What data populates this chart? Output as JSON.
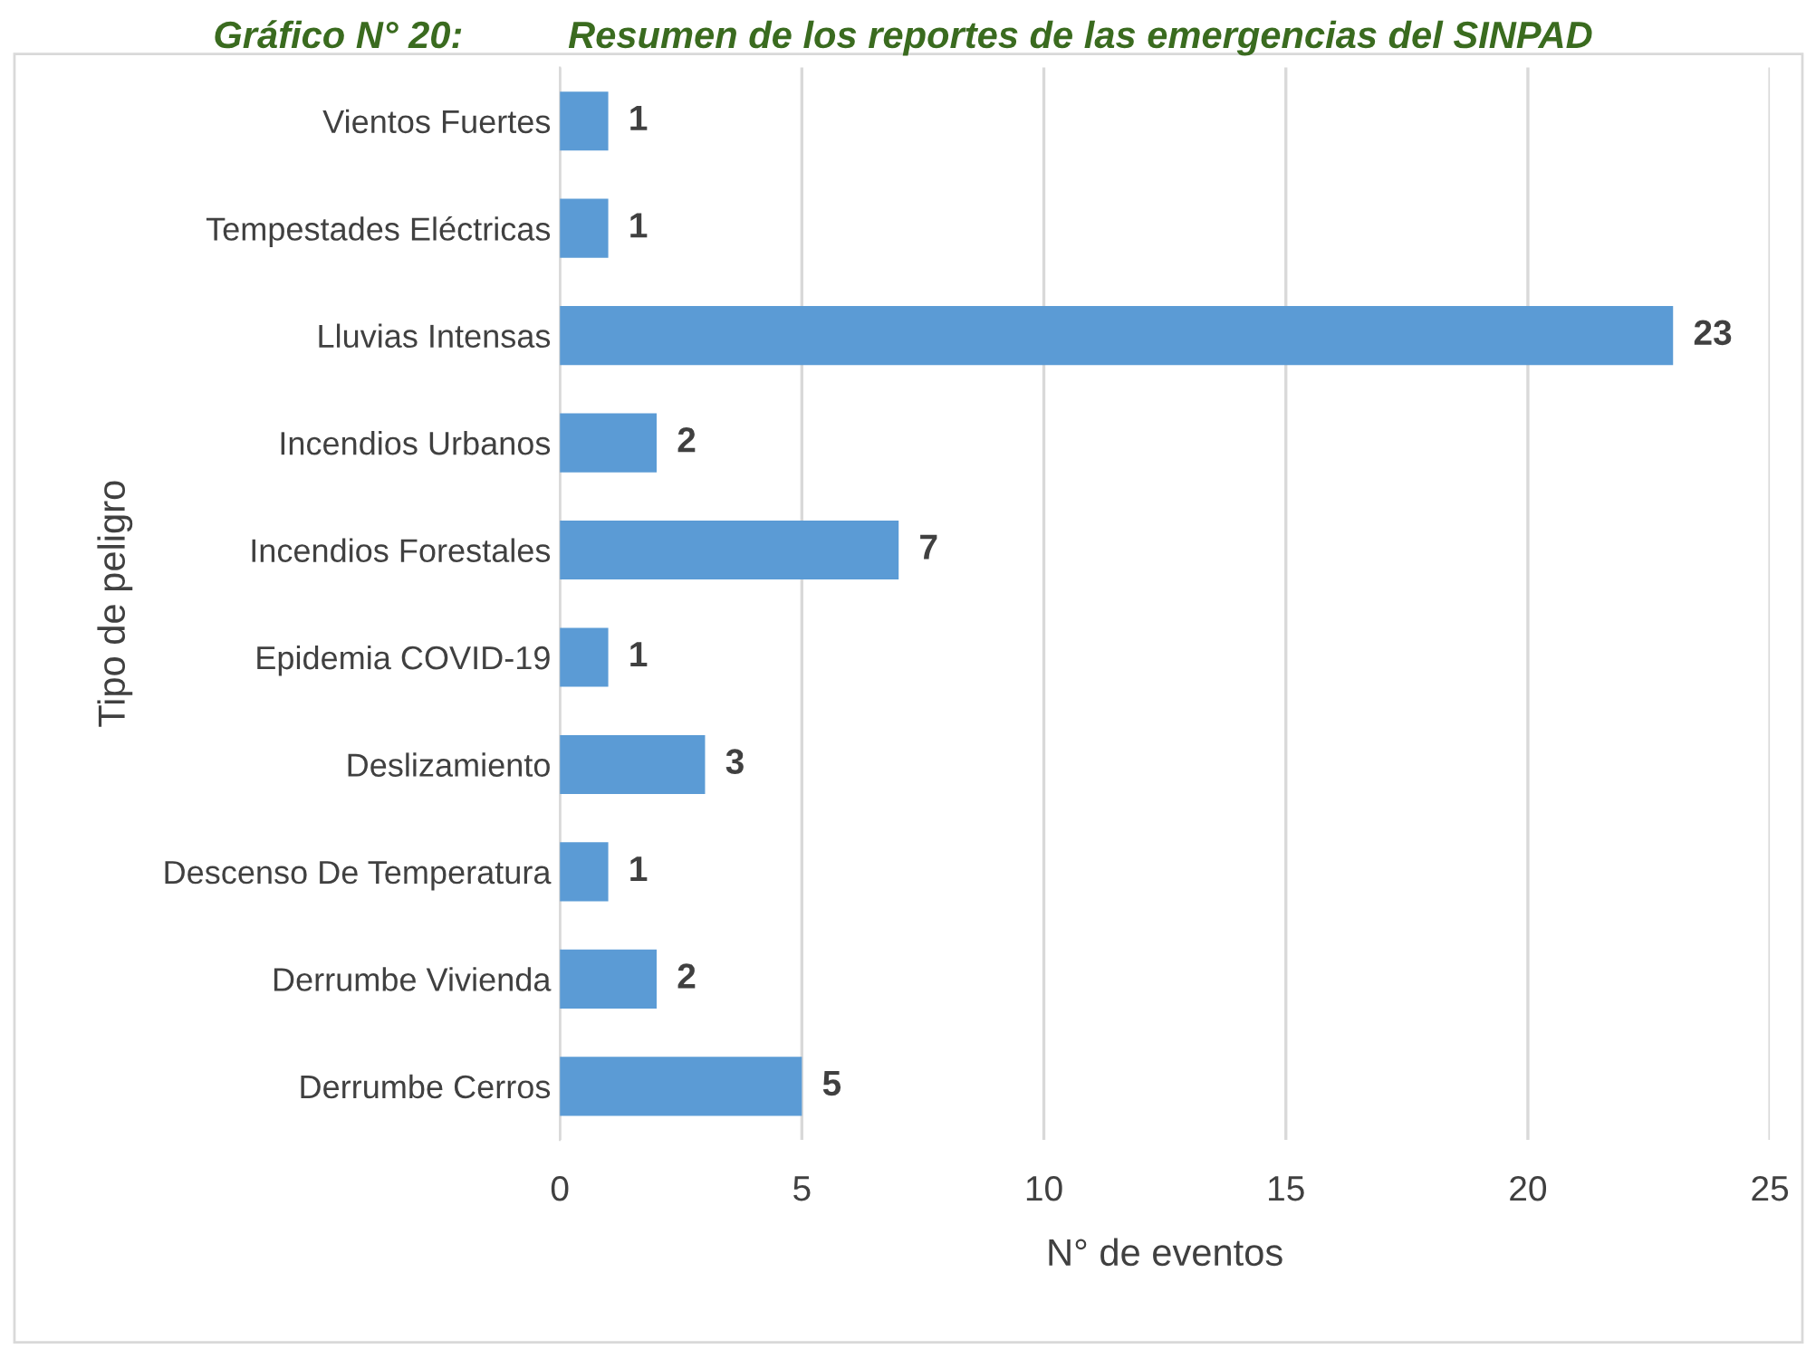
{
  "chart_data": {
    "type": "bar",
    "orientation": "horizontal",
    "title": "Gráfico N° 20:          Resumen de los reportes de las emergencias del SINPAD",
    "xlabel": "N° de eventos",
    "ylabel": "Tipo de peligro",
    "categories": [
      "Vientos Fuertes",
      "Tempestades Eléctricas",
      "Lluvias Intensas",
      "Incendios Urbanos",
      "Incendios Forestales",
      "Epidemia COVID-19",
      "Deslizamiento",
      "Descenso De Temperatura",
      "Derrumbe Vivienda",
      "Derrumbe Cerros"
    ],
    "values": [
      1,
      1,
      23,
      2,
      7,
      1,
      3,
      1,
      2,
      5
    ],
    "color": "#5b9bd5",
    "xlim": [
      0,
      25
    ],
    "xticks": [
      0,
      5,
      10,
      15,
      20,
      25
    ],
    "grid": "x",
    "data_labels": true
  }
}
